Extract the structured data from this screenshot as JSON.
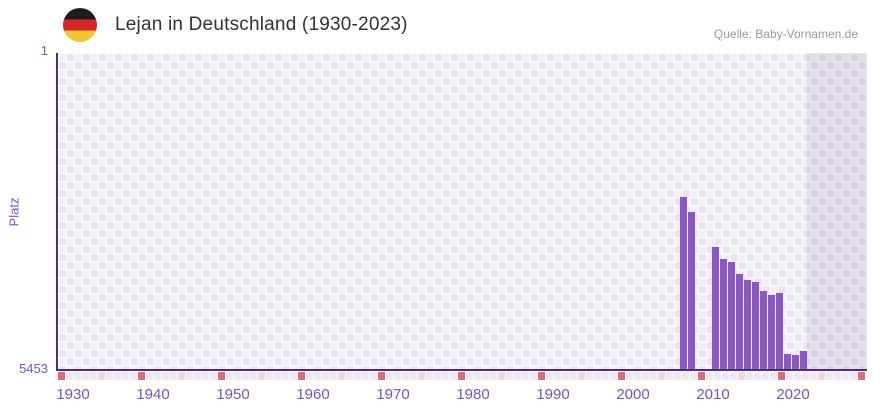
{
  "header": {
    "source": "Quelle: Baby-Vornamen.de",
    "flag_icon": "germany-flag-icon"
  },
  "chart_data": {
    "type": "bar",
    "title": "Lejan in Deutschland (1930-2023)",
    "xlabel": "",
    "ylabel": "Platz",
    "y_axis": {
      "min": 1,
      "max": 5453,
      "inverted": true,
      "tick_labels": [
        "1",
        "5453"
      ]
    },
    "x_axis": {
      "tick_labels": [
        "1930",
        "1940",
        "1950",
        "1960",
        "1970",
        "1980",
        "1990",
        "2000",
        "2010",
        "2020"
      ],
      "first_year": 1930,
      "last_data_year": 2023,
      "decade_marker_years": [
        1930,
        1940,
        1950,
        1960,
        1970,
        1980,
        1990,
        2000,
        2010,
        2020,
        2030
      ],
      "half_decade_marker_years": [
        1935,
        1945,
        1955,
        1965,
        1975,
        1985,
        1995,
        2005,
        2015,
        2025
      ]
    },
    "grid": "checkered",
    "legend": false,
    "series": [
      {
        "name": "Platz",
        "points": [
          {
            "year": 2006,
            "rank": 2485
          },
          {
            "year": 2007,
            "rank": 2745
          },
          {
            "year": 2010,
            "rank": 3350
          },
          {
            "year": 2011,
            "rank": 3555
          },
          {
            "year": 2012,
            "rank": 3605
          },
          {
            "year": 2013,
            "rank": 3815
          },
          {
            "year": 2014,
            "rank": 3915
          },
          {
            "year": 2015,
            "rank": 3950
          },
          {
            "year": 2016,
            "rank": 4105
          },
          {
            "year": 2017,
            "rank": 4175
          },
          {
            "year": 2018,
            "rank": 4140
          },
          {
            "year": 2019,
            "rank": 5195
          },
          {
            "year": 2020,
            "rank": 5210
          },
          {
            "year": 2021,
            "rank": 5145
          }
        ]
      }
    ],
    "no_data_band": {
      "from_year": 2022
    },
    "colors": {
      "bar": "#8a57c5",
      "axis_line": "#4d2c7f",
      "axis_text": "#7d54be",
      "checker_light": "#f3effa",
      "checker_dark": "#eae4f4",
      "no_data_overlay": "rgba(108,96,134,0.13)",
      "decade_marker": "#df6a7c",
      "half_decade_marker": "#f2d6de",
      "marker_strip_base": "#ece7f5",
      "title_text": "#333333",
      "source_text": "#999999"
    }
  }
}
